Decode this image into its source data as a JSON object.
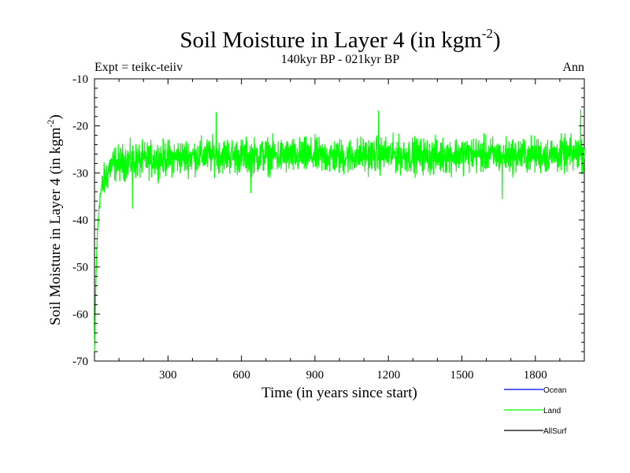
{
  "chart_data": {
    "type": "line",
    "title": "Soil Moisture in Layer 4 (in kgm",
    "title_superscript": "-2",
    "title_close": ")",
    "subtitle": "140kyr BP - 021kyr BP",
    "left_label": "Expt = teikc-teiiv",
    "right_label": "Ann",
    "xlabel": "Time (in years since start)",
    "ylabel": "Soil Moisture in Layer 4 (in kgm",
    "ylabel_superscript": "-2",
    "ylabel_close": ")",
    "xlim": [
      0,
      2000
    ],
    "ylim": [
      -70,
      -10
    ],
    "xticks": [
      300,
      600,
      900,
      1200,
      1500,
      1800
    ],
    "xtick_labels": [
      "300",
      "600",
      "900",
      "1200",
      "1500",
      "1800"
    ],
    "yticks": [
      -70,
      -60,
      -50,
      -40,
      -30,
      -20,
      -10
    ],
    "ytick_labels": [
      "-70",
      "-60",
      "-50",
      "-40",
      "-30",
      "-20",
      "-10"
    ],
    "legend_position": "bottom-right",
    "series": [
      {
        "name": "Ocean",
        "color": "#0000ff",
        "values": []
      },
      {
        "name": "Land",
        "color": "#00ff00",
        "anchors_x": [
          0,
          5,
          10,
          15,
          20,
          30,
          45,
          60,
          80,
          100,
          130,
          160,
          200,
          300,
          400,
          500,
          600,
          700,
          800,
          900,
          1000,
          1100,
          1200,
          1300,
          1400,
          1500,
          1600,
          1700,
          1800,
          1900,
          2000
        ],
        "anchors_y": [
          -68,
          -55,
          -45,
          -40,
          -36,
          -33,
          -31,
          -29,
          -28,
          -28,
          -27.5,
          -27.5,
          -27.3,
          -26.8,
          -26.5,
          -26.2,
          -26.5,
          -26.3,
          -26.5,
          -26.4,
          -26.6,
          -26.2,
          -26.1,
          -26.3,
          -26.5,
          -26.0,
          -26.2,
          -26.3,
          -26.2,
          -26.1,
          -26.0
        ],
        "noise_amplitude": 2.5,
        "peaks": [
          {
            "x": 497,
            "y": -17.2
          },
          {
            "x": 1160,
            "y": -16.8
          },
          {
            "x": 1985,
            "y": -16.6
          },
          {
            "x": 1665,
            "y": -35.5
          },
          {
            "x": 155,
            "y": -37.5
          },
          {
            "x": 638,
            "y": -34.2
          }
        ]
      },
      {
        "name": "AllSurf",
        "color": "#000000",
        "values": []
      }
    ]
  }
}
